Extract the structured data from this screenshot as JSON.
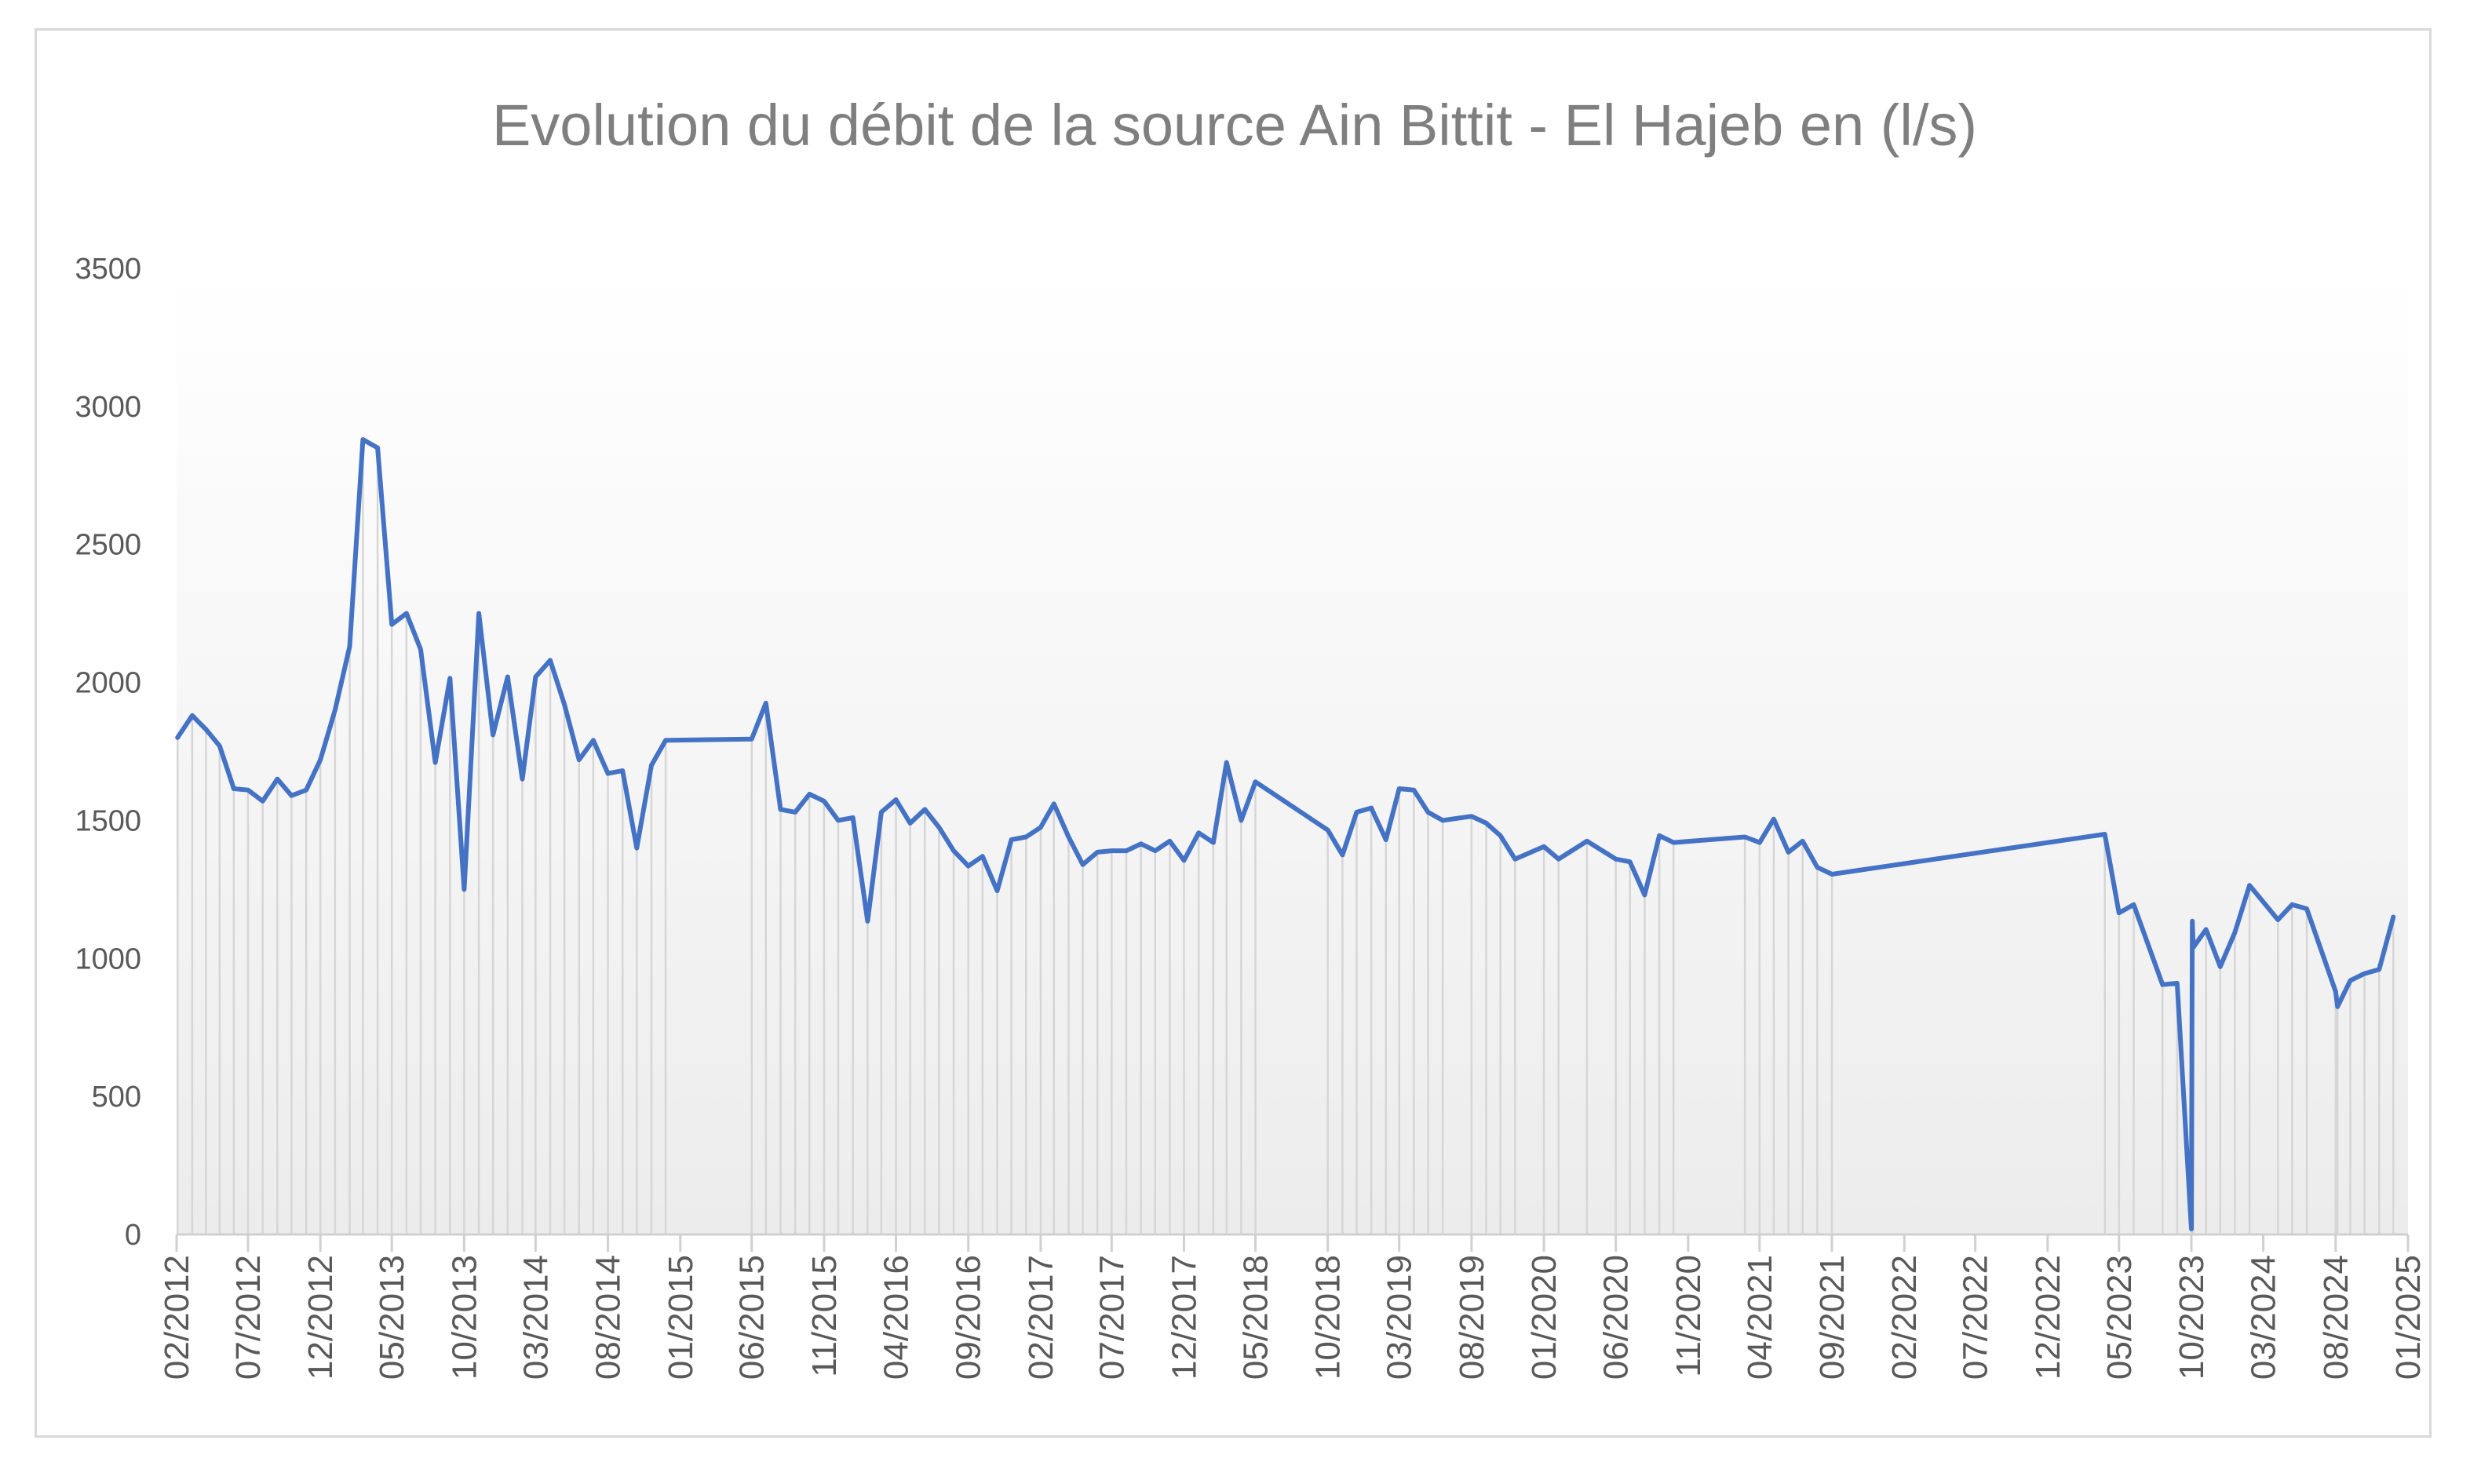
{
  "chart_data": {
    "type": "line",
    "title": "Evolution du débit de la source Ain Bittit - El Hajeb en (l/s)",
    "xlabel": "",
    "ylabel": "",
    "ylim": [
      0,
      3500
    ],
    "yticks": [
      0,
      500,
      1000,
      1500,
      2000,
      2500,
      3000,
      3500
    ],
    "xlim": [
      "2012-02-01",
      "2025-01-01"
    ],
    "xtick_labels": [
      "02/2012",
      "07/2012",
      "12/2012",
      "05/2013",
      "10/2013",
      "03/2014",
      "08/2014",
      "01/2015",
      "06/2015",
      "11/2015",
      "04/2016",
      "09/2016",
      "02/2017",
      "07/2017",
      "12/2017",
      "05/2018",
      "10/2018",
      "03/2019",
      "08/2019",
      "01/2020",
      "06/2020",
      "11/2020",
      "04/2021",
      "09/2021",
      "02/2022",
      "07/2022",
      "12/2022",
      "05/2023",
      "10/2023",
      "03/2024",
      "08/2024",
      "01/2025"
    ],
    "grid": false,
    "legend": "none",
    "drop_lines": true,
    "line_color": "#4472c4",
    "series": [
      {
        "name": "",
        "points": [
          [
            "2012-02-03",
            1800
          ],
          [
            "2012-03-05",
            1880
          ],
          [
            "2012-04-03",
            1830
          ],
          [
            "2012-05-02",
            1770
          ],
          [
            "2012-06-01",
            1615
          ],
          [
            "2012-07-01",
            1610
          ],
          [
            "2012-08-01",
            1570
          ],
          [
            "2012-09-01",
            1650
          ],
          [
            "2012-10-01",
            1590
          ],
          [
            "2012-11-01",
            1610
          ],
          [
            "2012-12-01",
            1720
          ],
          [
            "2013-01-01",
            1900
          ],
          [
            "2013-02-01",
            2130
          ],
          [
            "2013-03-01",
            2880
          ],
          [
            "2013-04-01",
            2850
          ],
          [
            "2013-05-01",
            2210
          ],
          [
            "2013-06-01",
            2250
          ],
          [
            "2013-07-01",
            2120
          ],
          [
            "2013-08-01",
            1710
          ],
          [
            "2013-09-01",
            2015
          ],
          [
            "2013-10-01",
            1250
          ],
          [
            "2013-11-01",
            2250
          ],
          [
            "2013-12-01",
            1810
          ],
          [
            "2014-01-01",
            2020
          ],
          [
            "2014-02-01",
            1650
          ],
          [
            "2014-03-01",
            2020
          ],
          [
            "2014-04-01",
            2080
          ],
          [
            "2014-05-01",
            1920
          ],
          [
            "2014-06-01",
            1720
          ],
          [
            "2014-07-01",
            1790
          ],
          [
            "2014-08-01",
            1670
          ],
          [
            "2014-09-01",
            1680
          ],
          [
            "2014-10-01",
            1400
          ],
          [
            "2014-11-01",
            1700
          ],
          [
            "2014-12-01",
            1790
          ],
          [
            "2015-06-01",
            1795
          ],
          [
            "2015-07-01",
            1925
          ],
          [
            "2015-08-01",
            1540
          ],
          [
            "2015-09-01",
            1530
          ],
          [
            "2015-10-01",
            1595
          ],
          [
            "2015-11-01",
            1570
          ],
          [
            "2015-12-01",
            1500
          ],
          [
            "2016-01-01",
            1510
          ],
          [
            "2016-02-01",
            1135
          ],
          [
            "2016-03-01",
            1530
          ],
          [
            "2016-04-01",
            1575
          ],
          [
            "2016-05-01",
            1490
          ],
          [
            "2016-06-01",
            1540
          ],
          [
            "2016-07-01",
            1475
          ],
          [
            "2016-08-01",
            1390
          ],
          [
            "2016-09-01",
            1335
          ],
          [
            "2016-10-01",
            1370
          ],
          [
            "2016-11-01",
            1245
          ],
          [
            "2016-12-01",
            1430
          ],
          [
            "2017-01-01",
            1440
          ],
          [
            "2017-02-01",
            1475
          ],
          [
            "2017-03-01",
            1560
          ],
          [
            "2017-04-01",
            1440
          ],
          [
            "2017-05-01",
            1340
          ],
          [
            "2017-06-01",
            1385
          ],
          [
            "2017-07-01",
            1390
          ],
          [
            "2017-08-01",
            1390
          ],
          [
            "2017-09-01",
            1415
          ],
          [
            "2017-10-01",
            1390
          ],
          [
            "2017-11-01",
            1425
          ],
          [
            "2017-12-01",
            1355
          ],
          [
            "2018-01-01",
            1455
          ],
          [
            "2018-02-01",
            1420
          ],
          [
            "2018-03-01",
            1710
          ],
          [
            "2018-04-01",
            1500
          ],
          [
            "2018-05-01",
            1640
          ],
          [
            "2018-10-01",
            1465
          ],
          [
            "2018-11-01",
            1375
          ],
          [
            "2018-12-01",
            1530
          ],
          [
            "2019-01-01",
            1545
          ],
          [
            "2019-02-01",
            1430
          ],
          [
            "2019-03-01",
            1615
          ],
          [
            "2019-04-01",
            1610
          ],
          [
            "2019-05-01",
            1530
          ],
          [
            "2019-06-01",
            1500
          ],
          [
            "2019-08-01",
            1515
          ],
          [
            "2019-09-01",
            1490
          ],
          [
            "2019-10-01",
            1445
          ],
          [
            "2019-11-01",
            1360
          ],
          [
            "2020-01-01",
            1405
          ],
          [
            "2020-02-01",
            1360
          ],
          [
            "2020-04-01",
            1425
          ],
          [
            "2020-06-01",
            1360
          ],
          [
            "2020-07-01",
            1350
          ],
          [
            "2020-08-01",
            1230
          ],
          [
            "2020-09-01",
            1445
          ],
          [
            "2020-10-01",
            1420
          ],
          [
            "2021-03-01",
            1440
          ],
          [
            "2021-04-01",
            1420
          ],
          [
            "2021-05-01",
            1505
          ],
          [
            "2021-06-01",
            1385
          ],
          [
            "2021-07-01",
            1425
          ],
          [
            "2021-08-01",
            1330
          ],
          [
            "2021-09-01",
            1305
          ],
          [
            "2023-04-01",
            1450
          ],
          [
            "2023-05-01",
            1165
          ],
          [
            "2023-06-01",
            1195
          ],
          [
            "2023-08-01",
            905
          ],
          [
            "2023-09-01",
            910
          ],
          [
            "2023-10-01",
            20
          ],
          [
            "2023-10-03",
            1135
          ],
          [
            "2023-10-05",
            1040
          ],
          [
            "2023-11-01",
            1105
          ],
          [
            "2023-12-01",
            970
          ],
          [
            "2024-01-01",
            1095
          ],
          [
            "2024-02-01",
            1265
          ],
          [
            "2024-04-01",
            1140
          ],
          [
            "2024-05-01",
            1195
          ],
          [
            "2024-06-01",
            1180
          ],
          [
            "2024-08-01",
            880
          ],
          [
            "2024-08-05",
            825
          ],
          [
            "2024-09-01",
            920
          ],
          [
            "2024-10-01",
            945
          ],
          [
            "2024-11-01",
            960
          ],
          [
            "2024-12-01",
            1150
          ]
        ]
      }
    ]
  }
}
